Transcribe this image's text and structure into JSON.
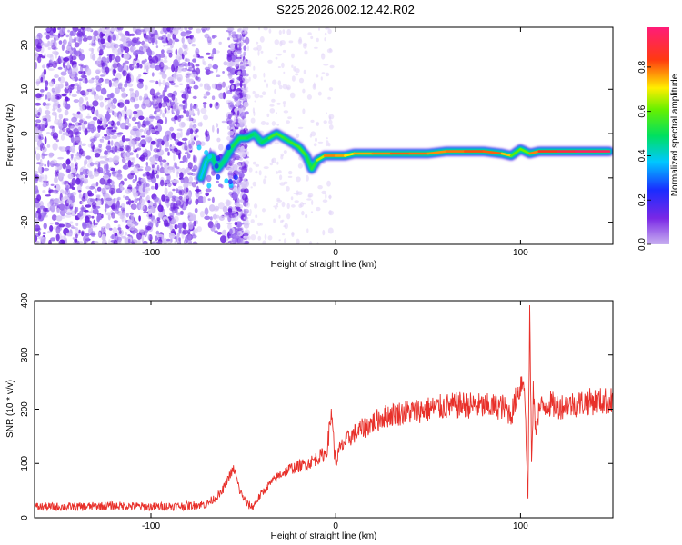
{
  "title": "S225.2026.002.12.42.R02",
  "colors": {
    "frame": "#000000",
    "snr_line": "#e8302a",
    "spectro_noise": "#6a1fe0",
    "spectro_ridge_high": "#ff2020",
    "background": "#ffffff"
  },
  "chart_data": [
    {
      "type": "heatmap",
      "name": "spectrogram",
      "title": "S225.2026.002.12.42.R02",
      "xlabel": "Height of straight line (km)",
      "ylabel": "Frequency (Hz)",
      "xlim": [
        -163,
        150
      ],
      "ylim": [
        -25,
        24
      ],
      "xticks": [
        -100,
        0,
        100
      ],
      "yticks": [
        -20,
        -10,
        0,
        10,
        20
      ],
      "colorbar": {
        "label": "Normalized spectral amplitude",
        "range": [
          0,
          0.98
        ],
        "ticks": [
          0,
          0.2,
          0.4,
          0.6,
          0.8
        ],
        "tick_labels": [
          "0.0",
          "0.2",
          "0.4",
          "0.6",
          "0.8"
        ],
        "colormap": "rainbow (purple-blue-cyan-green-yellow-red-magenta)"
      },
      "ridge": {
        "x": [
          -73,
          -70,
          -67,
          -64,
          -60,
          -56,
          -52,
          -48,
          -44,
          -40,
          -36,
          -32,
          -28,
          -24,
          -20,
          -16,
          -13,
          -10,
          -6,
          0,
          5,
          10,
          20,
          30,
          40,
          50,
          60,
          70,
          80,
          90,
          95,
          100,
          105,
          110,
          120,
          130,
          140,
          148
        ],
        "y": [
          -10,
          -6,
          -5,
          -8,
          -6,
          -3,
          -1,
          -1,
          0,
          -2,
          -1,
          0,
          -1,
          -2,
          -3,
          -5,
          -8,
          -6,
          -5,
          -5,
          -5,
          -4.5,
          -4.5,
          -4.5,
          -4.5,
          -4.5,
          -4,
          -4,
          -4,
          -4.5,
          -5,
          -3.5,
          -4.5,
          -4,
          -4,
          -4,
          -4,
          -4
        ],
        "amp": [
          0.35,
          0.4,
          0.45,
          0.5,
          0.45,
          0.5,
          0.55,
          0.5,
          0.5,
          0.45,
          0.55,
          0.6,
          0.55,
          0.55,
          0.6,
          0.55,
          0.5,
          0.6,
          0.75,
          0.85,
          0.7,
          0.75,
          0.8,
          0.8,
          0.85,
          0.78,
          0.8,
          0.82,
          0.85,
          0.8,
          0.7,
          0.5,
          0.75,
          0.85,
          0.9,
          0.95,
          0.98,
          0.95
        ]
      },
      "noise_region_x": [
        -163,
        -48
      ]
    },
    {
      "type": "line",
      "name": "snr",
      "xlabel": "Height of straight line (km)",
      "ylabel": "SNR (10 * v/v)",
      "xlim": [
        -163,
        150
      ],
      "ylim": [
        0,
        400
      ],
      "xticks": [
        -100,
        0,
        100
      ],
      "yticks": [
        0,
        100,
        200,
        300,
        400
      ],
      "series": [
        {
          "name": "SNR",
          "x": [
            -163,
            -140,
            -120,
            -100,
            -80,
            -70,
            -62,
            -58,
            -55,
            -52,
            -48,
            -45,
            -40,
            -35,
            -30,
            -25,
            -20,
            -15,
            -10,
            -5,
            -2,
            -1,
            0,
            2,
            5,
            10,
            15,
            20,
            25,
            30,
            40,
            50,
            60,
            70,
            80,
            90,
            95,
            100,
            102,
            104,
            105,
            106,
            107,
            108,
            110,
            115,
            120,
            130,
            140,
            150
          ],
          "y": [
            20,
            20,
            22,
            20,
            22,
            25,
            45,
            75,
            90,
            50,
            25,
            20,
            45,
            65,
            80,
            90,
            95,
            100,
            110,
            120,
            200,
            130,
            100,
            125,
            140,
            155,
            165,
            175,
            185,
            190,
            195,
            200,
            205,
            208,
            205,
            205,
            190,
            245,
            260,
            30,
            380,
            90,
            240,
            160,
            200,
            210,
            205,
            210,
            215,
            215
          ]
        }
      ]
    }
  ]
}
